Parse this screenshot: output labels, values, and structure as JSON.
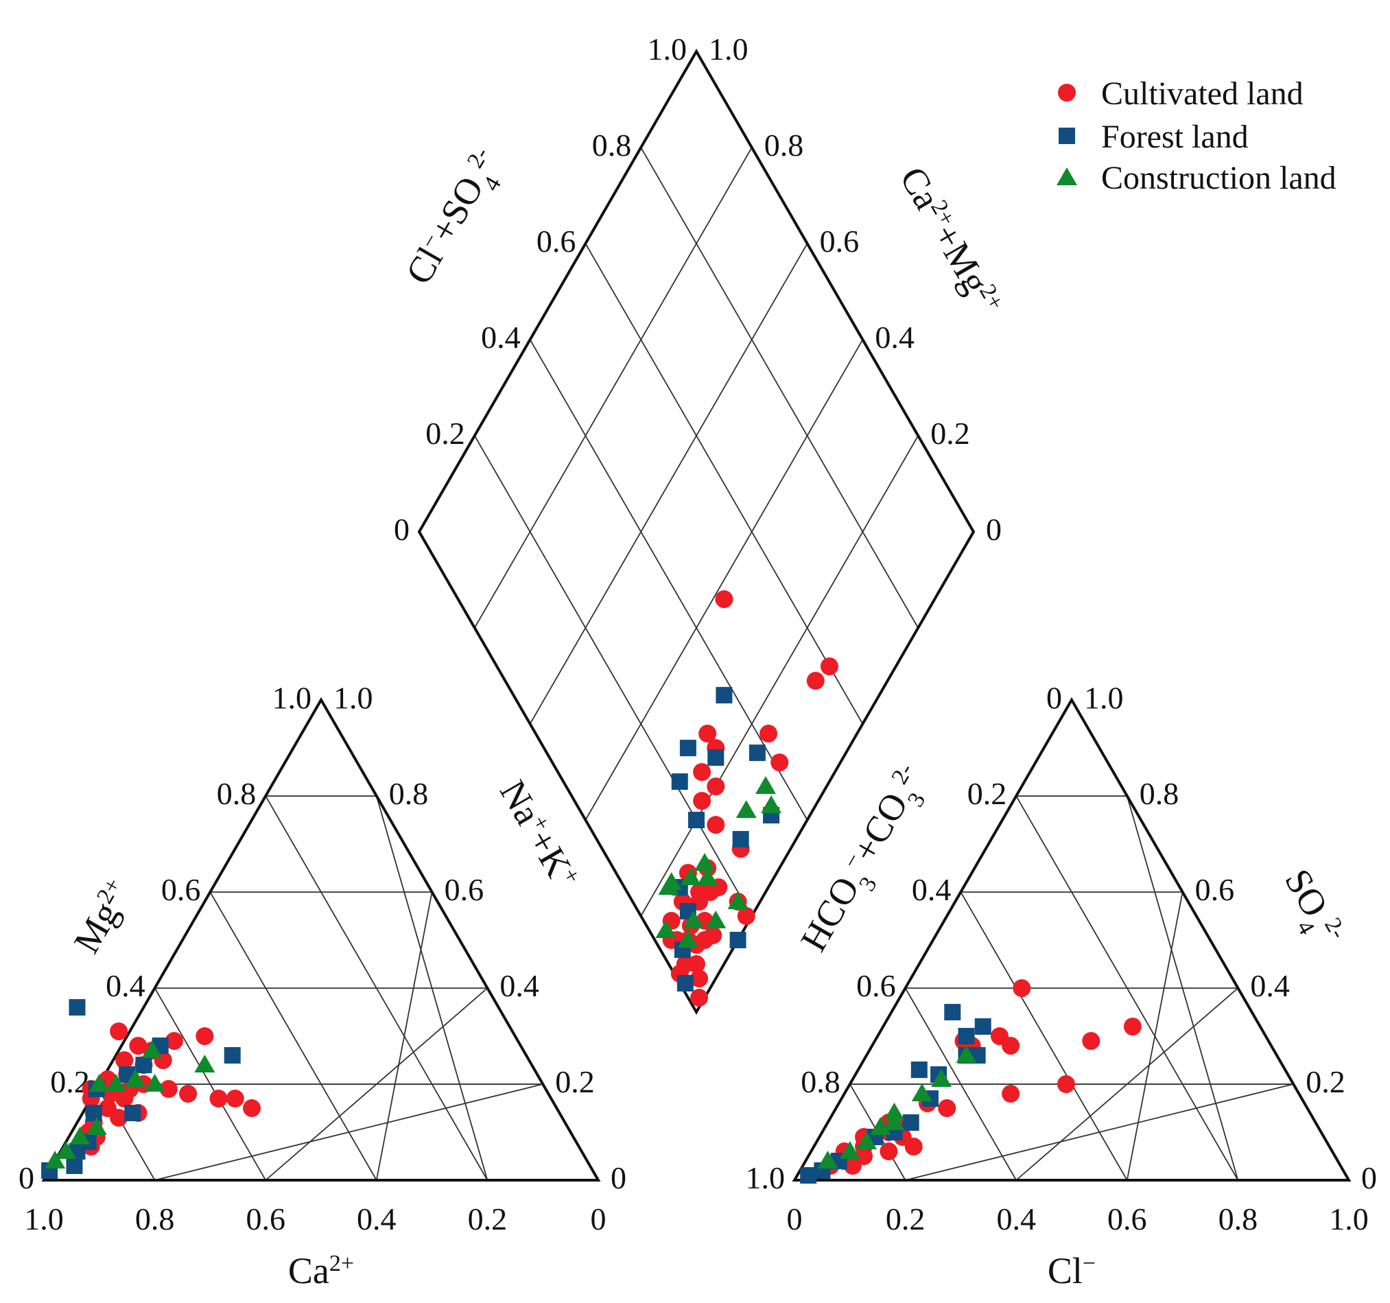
{
  "chart_data": {
    "type": "scatter",
    "subtype": "piper-trilinear-diagram",
    "legend": {
      "placement": "top-right",
      "entries": [
        {
          "label": "Cultivated land",
          "marker": "circle",
          "color": "#ee1c25"
        },
        {
          "label": "Forest land",
          "marker": "square",
          "color": "#114d80"
        },
        {
          "label": "Construction land",
          "marker": "triangle",
          "color": "#0f8a2c"
        }
      ]
    },
    "grid_step": 0.2,
    "cation_triangle": {
      "xlabel_main": "Ca",
      "xlabel_sup": "2+",
      "ylabel_main": "Mg",
      "ylabel_sup": "2+",
      "bottom_ticks": [
        "1.0",
        "0.8",
        "0.6",
        "0.4",
        "0.2",
        "0"
      ],
      "left_ticks": [
        "0",
        "0.2",
        "0.4",
        "0.6",
        "0.8",
        "1.0"
      ],
      "right_ticks": [
        "0",
        "0.2",
        "0.4",
        "0.6",
        "0.8",
        "1.0"
      ],
      "point_fields": [
        "Ca",
        "Mg"
      ],
      "series": [
        {
          "name": "Cultivated land",
          "points": [
            [
              0.88,
              0.07
            ],
            [
              0.87,
              0.1
            ],
            [
              0.86,
              0.09
            ],
            [
              0.85,
              0.12
            ],
            [
              0.84,
              0.14
            ],
            [
              0.83,
              0.17
            ],
            [
              0.82,
              0.19
            ],
            [
              0.81,
              0.15
            ],
            [
              0.8,
              0.13
            ],
            [
              0.79,
              0.18
            ],
            [
              0.78,
              0.21
            ],
            [
              0.77,
              0.17
            ],
            [
              0.76,
              0.14
            ],
            [
              0.75,
              0.19
            ],
            [
              0.74,
              0.22
            ],
            [
              0.73,
              0.25
            ],
            [
              0.72,
              0.2
            ],
            [
              0.71,
              0.31
            ],
            [
              0.7,
              0.24
            ],
            [
              0.69,
              0.28
            ],
            [
              0.68,
              0.19
            ],
            [
              0.67,
              0.27
            ],
            [
              0.66,
              0.25
            ],
            [
              0.65,
              0.18
            ],
            [
              0.62,
              0.29
            ],
            [
              0.6,
              0.17
            ],
            [
              0.57,
              0.17
            ],
            [
              0.56,
              0.3
            ],
            [
              0.55,
              0.15
            ]
          ]
        },
        {
          "name": "Forest land",
          "points": [
            [
              0.98,
              0.02
            ],
            [
              0.93,
              0.03
            ],
            [
              0.91,
              0.06
            ],
            [
              0.88,
              0.08
            ],
            [
              0.84,
              0.14
            ],
            [
              0.81,
              0.19
            ],
            [
              0.77,
              0.14
            ],
            [
              0.74,
              0.22
            ],
            [
              0.7,
              0.24
            ],
            [
              0.65,
              0.28
            ],
            [
              0.53,
              0.26
            ],
            [
              0.76,
              0.36
            ]
          ]
        },
        {
          "name": "Construction land",
          "points": [
            [
              0.93,
              0.06
            ],
            [
              0.89,
              0.09
            ],
            [
              0.85,
              0.11
            ],
            [
              0.8,
              0.2
            ],
            [
              0.77,
              0.2
            ],
            [
              0.73,
              0.21
            ],
            [
              0.7,
              0.2
            ],
            [
              0.67,
              0.27
            ],
            [
              0.59,
              0.24
            ],
            [
              0.96,
              0.04
            ]
          ]
        }
      ]
    },
    "anion_triangle": {
      "xlabel_main": "Cl",
      "xlabel_sup": "−",
      "ylabel_main": "HCO",
      "ylabel_sub1": "3",
      "ylabel_mid": "+CO",
      "ylabel_sub2": "3",
      "ylabel_sup": "2-",
      "rlabel_main": "SO",
      "rlabel_sub": "4",
      "rlabel_sup": "2-",
      "bottom_ticks": [
        "0",
        "0.2",
        "0.4",
        "0.6",
        "0.8",
        "1.0"
      ],
      "left_ticks": [
        "1.0",
        "0.8",
        "0.6",
        "0.4",
        "0.2",
        "0"
      ],
      "right_ticks": [
        "0",
        "0.2",
        "0.4",
        "0.6",
        "0.8",
        "1.0"
      ],
      "point_fields": [
        "Cl",
        "SO4"
      ],
      "series": [
        {
          "name": "Cultivated land",
          "points": [
            [
              0.05,
              0.03
            ],
            [
              0.06,
              0.06
            ],
            [
              0.07,
              0.04
            ],
            [
              0.08,
              0.09
            ],
            [
              0.09,
              0.07
            ],
            [
              0.09,
              0.03
            ],
            [
              0.1,
              0.05
            ],
            [
              0.11,
              0.12
            ],
            [
              0.12,
              0.1
            ],
            [
              0.13,
              0.11
            ],
            [
              0.14,
              0.06
            ],
            [
              0.15,
              0.09
            ],
            [
              0.16,
              0.16
            ],
            [
              0.18,
              0.07
            ],
            [
              0.2,
              0.15
            ],
            [
              0.16,
              0.29
            ],
            [
              0.18,
              0.28
            ],
            [
              0.21,
              0.4
            ],
            [
              0.22,
              0.3
            ],
            [
              0.25,
              0.28
            ],
            [
              0.3,
              0.18
            ],
            [
              0.39,
              0.29
            ],
            [
              0.39,
              0.2
            ],
            [
              0.45,
              0.32
            ]
          ]
        },
        {
          "name": "Forest land",
          "points": [
            [
              0.02,
              0.01
            ],
            [
              0.04,
              0.02
            ],
            [
              0.06,
              0.04
            ],
            [
              0.1,
              0.09
            ],
            [
              0.13,
              0.1
            ],
            [
              0.15,
              0.12
            ],
            [
              0.16,
              0.17
            ],
            [
              0.15,
              0.22
            ],
            [
              0.18,
              0.26
            ],
            [
              0.18,
              0.32
            ],
            [
              0.2,
              0.26
            ],
            [
              0.11,
              0.23
            ],
            [
              0.11,
              0.35
            ],
            [
              0.16,
              0.3
            ]
          ]
        },
        {
          "name": "Construction land",
          "points": [
            [
              0.04,
              0.04
            ],
            [
              0.07,
              0.06
            ],
            [
              0.09,
              0.08
            ],
            [
              0.1,
              0.11
            ],
            [
              0.11,
              0.14
            ],
            [
              0.12,
              0.12
            ],
            [
              0.14,
              0.18
            ],
            [
              0.16,
              0.21
            ],
            [
              0.18,
              0.26
            ]
          ]
        }
      ]
    },
    "diamond": {
      "ul_label_main": "Cl",
      "ul_label_mid": "+SO",
      "ul_label_sub": "4",
      "ul_label_sup": "2-",
      "ur_label_main": "Ca",
      "ur_label_mid": "+Mg",
      "ur_label_sup": "2+",
      "ll_label_main": "Na",
      "ll_label_mid": "+K",
      "ll_label_sup": "+",
      "ul_ticks": [
        "0",
        "0.2",
        "0.4",
        "0.6",
        "0.8",
        "1.0"
      ],
      "ur_ticks": [
        "0",
        "0.2",
        "0.4",
        "0.6",
        "0.8",
        "1.0"
      ],
      "point_fields": [
        "ClSO4",
        "CaMg"
      ],
      "series": [
        {
          "name": "Cultivated land",
          "points": [
            [
              0.02,
              0.99
            ],
            [
              0.04,
              0.97
            ],
            [
              0.01,
              0.93
            ],
            [
              0.03,
              0.93
            ],
            [
              0.05,
              0.95
            ],
            [
              0.06,
              0.91
            ],
            [
              0.07,
              0.93
            ],
            [
              0.08,
              0.9
            ],
            [
              0.09,
              0.94
            ],
            [
              0.04,
              0.89
            ],
            [
              0.03,
              0.88
            ],
            [
              0.05,
              0.86
            ],
            [
              0.09,
              0.86
            ],
            [
              0.11,
              0.92
            ],
            [
              0.11,
              0.95
            ],
            [
              0.12,
              0.89
            ],
            [
              0.13,
              0.88
            ],
            [
              0.13,
              0.84
            ],
            [
              0.15,
              0.9
            ],
            [
              0.17,
              0.91
            ],
            [
              0.17,
              0.87
            ],
            [
              0.19,
              0.96
            ],
            [
              0.19,
              0.99
            ],
            [
              0.23,
              0.79
            ],
            [
              0.23,
              0.84
            ],
            [
              0.25,
              0.91
            ],
            [
              0.26,
              0.76
            ],
            [
              0.27,
              0.8
            ],
            [
              0.31,
              0.76
            ],
            [
              0.31,
              0.73
            ],
            [
              0.41,
              0.89
            ],
            [
              0.42,
              0.84
            ],
            [
              0.6,
              0.88
            ],
            [
              0.56,
              0.87
            ],
            [
              0.48,
              0.62
            ]
          ]
        },
        {
          "name": "Forest land",
          "points": [
            [
              0.01,
              0.95
            ],
            [
              0.04,
              0.91
            ],
            [
              0.09,
              0.88
            ],
            [
              0.1,
              0.84
            ],
            [
              0.15,
              1.0
            ],
            [
              0.26,
              0.9
            ],
            [
              0.34,
              0.93
            ],
            [
              0.38,
              0.84
            ],
            [
              0.3,
              0.77
            ],
            [
              0.38,
              0.72
            ],
            [
              0.21,
              0.73
            ],
            [
              0.2,
              0.8
            ],
            [
              0.26,
              0.71
            ]
          ]
        },
        {
          "name": "Construction land",
          "points": [
            [
              0.03,
              0.86
            ],
            [
              0.08,
              0.82
            ],
            [
              0.09,
              0.82
            ],
            [
              0.06,
              0.91
            ],
            [
              0.09,
              0.9
            ],
            [
              0.13,
              0.94
            ],
            [
              0.16,
              0.88
            ],
            [
              0.17,
              0.86
            ],
            [
              0.13,
              0.85
            ],
            [
              0.19,
              0.96
            ],
            [
              0.3,
              0.88
            ],
            [
              0.35,
              0.92
            ],
            [
              0.36,
              0.89
            ]
          ]
        }
      ]
    }
  }
}
